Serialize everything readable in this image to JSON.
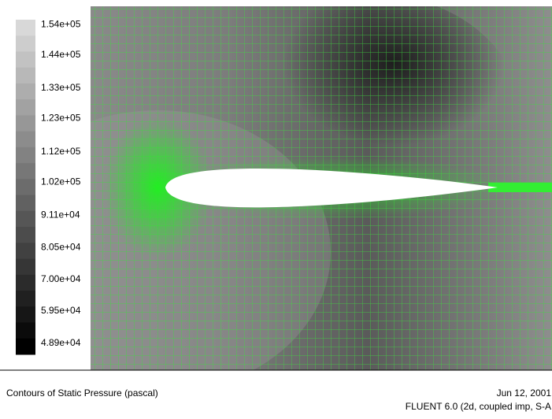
{
  "chart_data": {
    "type": "contour",
    "title": "Contours of Static Pressure (pascal)",
    "date": "Jun 12, 2001",
    "software": "FLUENT 6.0 (2d, coupled imp, S-A",
    "clim": [
      48900,
      154000
    ],
    "cticks": [
      {
        "value": 154000,
        "label": "1.54e+05"
      },
      {
        "value": 144000,
        "label": "1.44e+05"
      },
      {
        "value": 133000,
        "label": "1.33e+05"
      },
      {
        "value": 123000,
        "label": "1.23e+05"
      },
      {
        "value": 112000,
        "label": "1.12e+05"
      },
      {
        "value": 102000,
        "label": "1.02e+05"
      },
      {
        "value": 91100,
        "label": "9.11e+04"
      },
      {
        "value": 80500,
        "label": "8.05e+04"
      },
      {
        "value": 70000,
        "label": "7.00e+04"
      },
      {
        "value": 59500,
        "label": "5.95e+04"
      },
      {
        "value": 48900,
        "label": "4.89e+04"
      }
    ]
  }
}
